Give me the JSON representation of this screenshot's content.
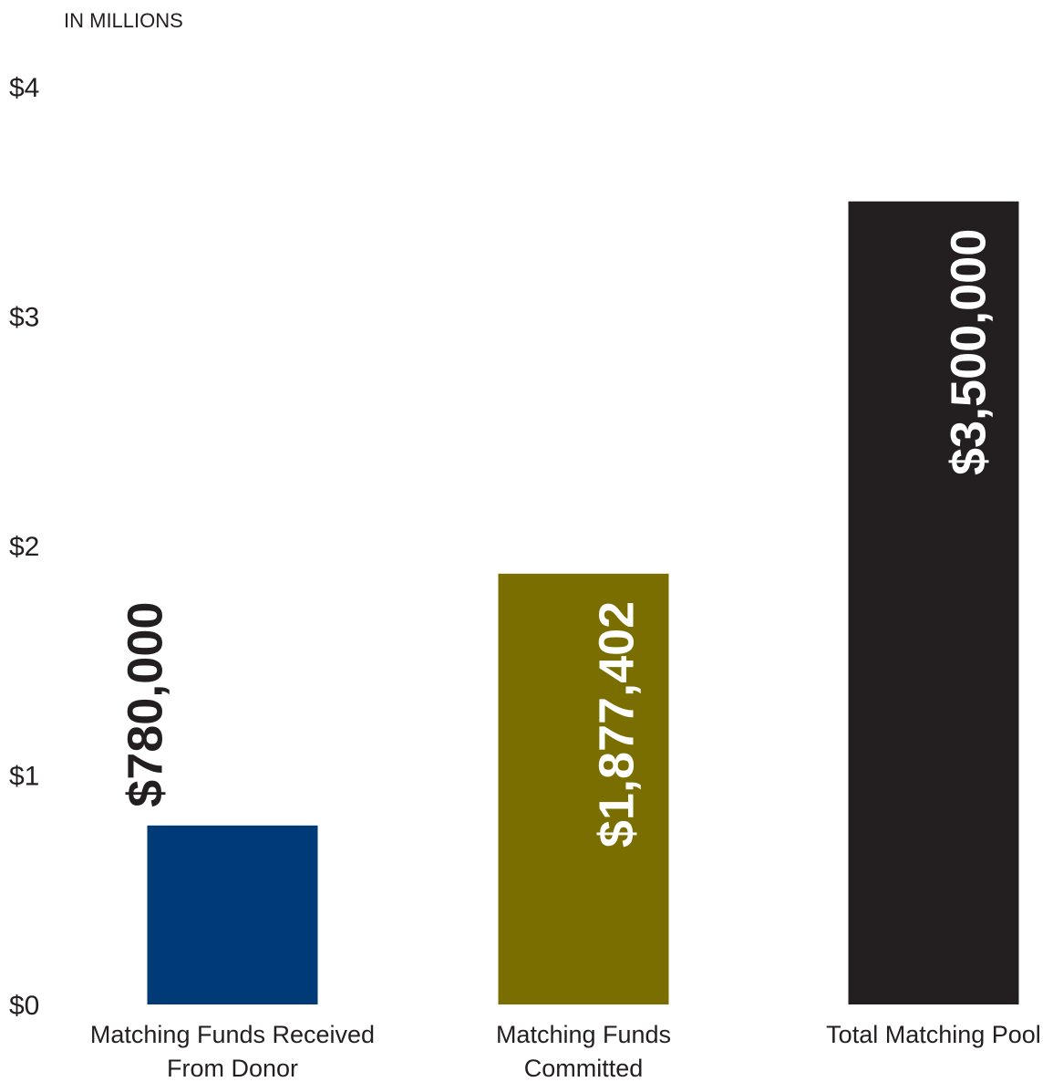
{
  "chart_data": {
    "type": "bar",
    "unit_label": "IN MILLIONS",
    "categories": [
      [
        "Matching Funds Received",
        "From Donor"
      ],
      [
        "Matching Funds",
        "Committed"
      ],
      [
        "Total Matching Pool"
      ]
    ],
    "values": [
      0.78,
      1.877402,
      3.5
    ],
    "data_labels": [
      "$780,000",
      "$1,877,402",
      "$3,500,000"
    ],
    "bar_colors": [
      "#003b78",
      "#7a6e00",
      "#231f20"
    ],
    "label_colors": [
      "#231f20",
      "#ffffff",
      "#ffffff"
    ],
    "label_position": [
      "above",
      "inside",
      "inside"
    ],
    "y_ticks": [
      0,
      1,
      2,
      3,
      4
    ],
    "y_tick_labels": [
      "$0",
      "$1",
      "$2",
      "$3",
      "$4"
    ],
    "ylim": [
      0,
      4
    ],
    "grid": false,
    "legend": "none"
  }
}
